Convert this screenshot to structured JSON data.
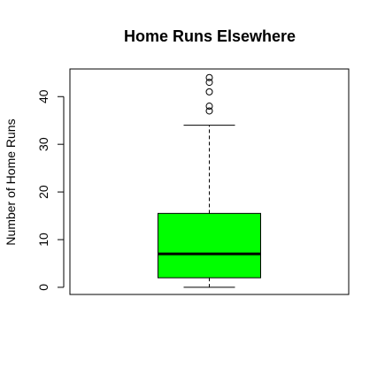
{
  "chart_data": {
    "type": "boxplot",
    "title": "Home Runs Elsewhere",
    "xlabel": "",
    "ylabel": "Number of Home Runs",
    "ylim": [
      -1.5,
      45.8
    ],
    "yticks": [
      0,
      10,
      20,
      30,
      40
    ],
    "grid": false,
    "box": {
      "min": 0,
      "q1": 2,
      "median": 7,
      "q3": 15.5,
      "whisker_high": 34,
      "outliers": [
        37,
        38,
        41,
        43,
        44
      ]
    },
    "colors": {
      "box_fill": "#00ff00",
      "stroke": "#000000"
    }
  }
}
